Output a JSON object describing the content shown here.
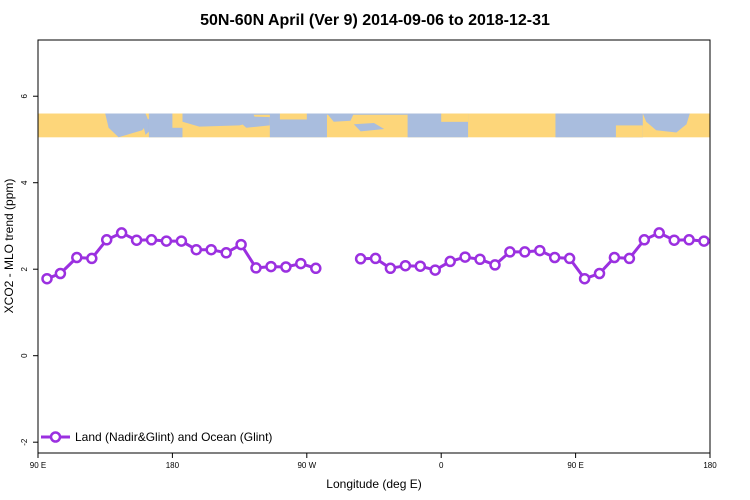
{
  "chart_data": {
    "type": "line",
    "title": "50N-60N April (Ver 9)   2014-09-06 to 2018-12-31",
    "xlabel": "Longitude (deg E)",
    "ylabel": "XCO2 - MLO trend (ppm)",
    "xlim": [
      90,
      540
    ],
    "ylim": [
      -2.25,
      7.3
    ],
    "x_ticks": [
      {
        "value": 90,
        "label": "90 E"
      },
      {
        "value": 180,
        "label": "180"
      },
      {
        "value": 270,
        "label": "90 W"
      },
      {
        "value": 360,
        "label": "0"
      },
      {
        "value": 450,
        "label": "90 E"
      },
      {
        "value": 540,
        "label": "180"
      }
    ],
    "y_ticks": [
      {
        "value": -2,
        "label": "-2"
      },
      {
        "value": 0,
        "label": "0"
      },
      {
        "value": 2,
        "label": "2"
      },
      {
        "value": 4,
        "label": "4"
      },
      {
        "value": 6,
        "label": "6"
      }
    ],
    "map_band": {
      "y_from": 5.05,
      "y_to": 5.6,
      "land_color": "#FDD67A",
      "ocean_color": "#A9BDDE"
    },
    "series": [
      {
        "name": "Land (Nadir&Glint) and Ocean (Glint)",
        "color": "#9B30E0",
        "segments": [
          {
            "x": [
              96,
              105,
              116,
              126,
              136,
              146,
              156,
              166,
              176,
              186,
              196,
              206,
              216,
              226,
              236,
              246,
              256,
              266,
              276
            ],
            "y": [
              1.78,
              1.9,
              2.27,
              2.25,
              2.68,
              2.84,
              2.67,
              2.68,
              2.65,
              2.65,
              2.45,
              2.45,
              2.38,
              2.57,
              2.03,
              2.06,
              2.05,
              2.13,
              2.02
            ]
          },
          {
            "x": [
              306,
              316,
              326,
              336,
              346,
              356,
              366,
              376,
              386,
              396,
              406,
              416,
              426,
              436,
              446,
              456,
              466,
              476,
              486,
              496,
              506,
              516,
              526,
              536
            ],
            "y": [
              2.24,
              2.25,
              2.02,
              2.08,
              2.07,
              1.98,
              2.18,
              2.28,
              2.23,
              2.1,
              2.4,
              2.4,
              2.43,
              2.27,
              2.25,
              1.78,
              1.9,
              2.27,
              2.25,
              2.68,
              2.84,
              2.67,
              2.68,
              2.65
            ]
          }
        ]
      }
    ],
    "legend": "bottom-left",
    "grid": false
  }
}
